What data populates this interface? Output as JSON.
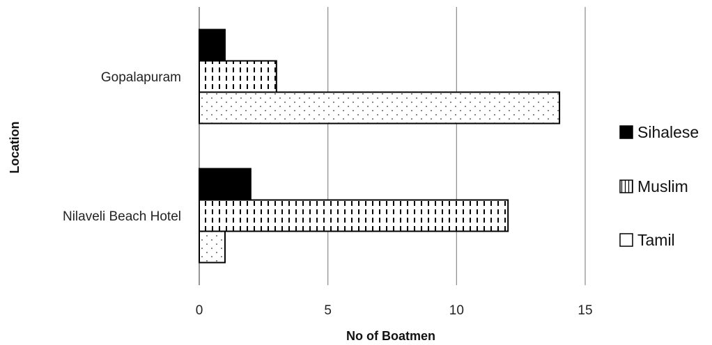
{
  "chart_data": {
    "type": "bar",
    "orientation": "horizontal",
    "categories": [
      "Gopalapuram",
      "Nilaveli Beach Hotel"
    ],
    "series": [
      {
        "name": "Sihalese",
        "values": [
          1,
          2
        ],
        "pattern": "solid-black"
      },
      {
        "name": "Muslim",
        "values": [
          3,
          12
        ],
        "pattern": "dashed-vertical"
      },
      {
        "name": "Tamil",
        "values": [
          14,
          1
        ],
        "pattern": "dotted"
      }
    ],
    "xlabel": "No of Boatmen",
    "ylabel": "Location",
    "xlim": [
      0,
      15
    ],
    "xticks": [
      0,
      5,
      10,
      15
    ],
    "grid": "vertical",
    "legend_position": "right"
  }
}
